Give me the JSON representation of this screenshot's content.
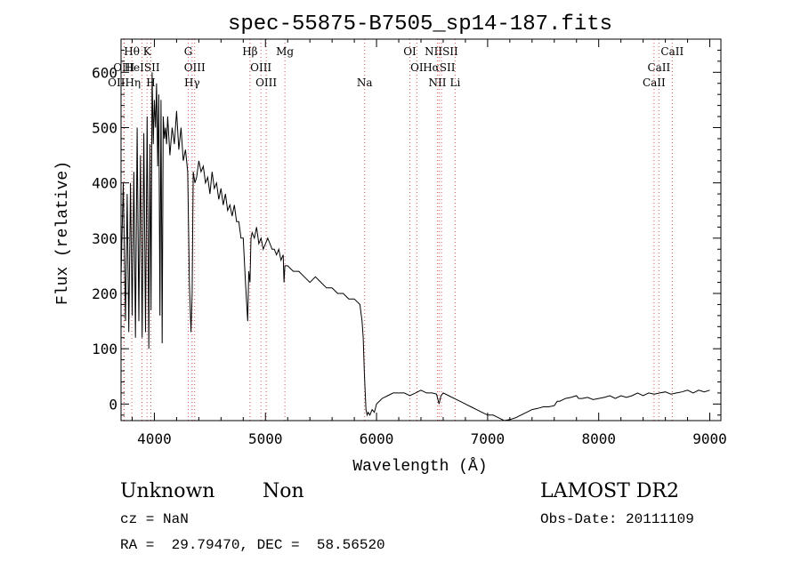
{
  "chart_data": {
    "type": "line",
    "title": "spec-55875-B7505_sp14-187.fits",
    "xlabel": "Wavelength (Å)",
    "ylabel": "Flux (relative)",
    "xlim": [
      3700,
      9100
    ],
    "ylim": [
      -30,
      660
    ],
    "xticks": [
      4000,
      5000,
      6000,
      7000,
      8000,
      9000
    ],
    "yticks": [
      0,
      100,
      200,
      300,
      400,
      500,
      600
    ],
    "grid": false,
    "line_color": "#000000",
    "marker_color": "#e05050",
    "series": [
      {
        "x": [
          3700,
          3720,
          3740,
          3755,
          3770,
          3785,
          3800,
          3815,
          3830,
          3845,
          3860,
          3875,
          3890,
          3905,
          3920,
          3935,
          3950,
          3960,
          3970,
          3980,
          3990,
          4000,
          4010,
          4020,
          4030,
          4040,
          4050,
          4060,
          4070,
          4080,
          4090,
          4100,
          4110,
          4120,
          4140,
          4160,
          4180,
          4200,
          4220,
          4240,
          4260,
          4280,
          4300,
          4315,
          4330,
          4340,
          4350,
          4365,
          4380,
          4400,
          4420,
          4440,
          4460,
          4480,
          4500,
          4520,
          4540,
          4560,
          4580,
          4600,
          4620,
          4640,
          4660,
          4680,
          4700,
          4720,
          4740,
          4760,
          4780,
          4800,
          4820,
          4840,
          4850,
          4861,
          4870,
          4880,
          4900,
          4920,
          4940,
          4960,
          4980,
          5000,
          5020,
          5040,
          5060,
          5080,
          5100,
          5120,
          5140,
          5160,
          5167,
          5175,
          5200,
          5250,
          5300,
          5350,
          5400,
          5450,
          5500,
          5550,
          5600,
          5650,
          5700,
          5750,
          5800,
          5850,
          5870,
          5880,
          5890,
          5896,
          5905,
          5915,
          5925,
          5940,
          5960,
          5980,
          6000,
          6050,
          6100,
          6150,
          6200,
          6250,
          6300,
          6350,
          6400,
          6450,
          6500,
          6540,
          6563,
          6580,
          6600,
          6650,
          6700,
          6750,
          6800,
          6850,
          6900,
          6950,
          7000,
          7050,
          7100,
          7150,
          7200,
          7250,
          7300,
          7350,
          7400,
          7450,
          7500,
          7550,
          7600,
          7627,
          7650,
          7700,
          7750,
          7800,
          7820,
          7850,
          7900,
          7950,
          8000,
          8050,
          8100,
          8150,
          8200,
          8250,
          8300,
          8350,
          8400,
          8450,
          8500,
          8550,
          8600,
          8650,
          8700,
          8750,
          8800,
          8850,
          8900,
          8950,
          9000
        ],
        "y": [
          230,
          400,
          150,
          380,
          130,
          400,
          160,
          420,
          120,
          500,
          150,
          450,
          120,
          490,
          130,
          520,
          100,
          470,
          170,
          600,
          470,
          550,
          500,
          580,
          430,
          560,
          160,
          550,
          110,
          520,
          480,
          500,
          470,
          520,
          450,
          500,
          470,
          530,
          460,
          500,
          440,
          460,
          420,
          220,
          130,
          200,
          420,
          400,
          410,
          440,
          420,
          430,
          400,
          410,
          380,
          420,
          390,
          400,
          370,
          390,
          360,
          380,
          350,
          360,
          340,
          360,
          330,
          330,
          300,
          300,
          220,
          150,
          240,
          220,
          300,
          310,
          300,
          320,
          290,
          300,
          280,
          290,
          300,
          290,
          280,
          280,
          270,
          280,
          260,
          270,
          220,
          250,
          250,
          240,
          240,
          230,
          220,
          230,
          220,
          210,
          210,
          200,
          200,
          190,
          190,
          180,
          150,
          120,
          60,
          30,
          -10,
          -20,
          -15,
          -20,
          -10,
          -15,
          0,
          10,
          15,
          20,
          20,
          20,
          15,
          20,
          25,
          20,
          20,
          18,
          0,
          15,
          20,
          15,
          10,
          5,
          0,
          -5,
          -10,
          -15,
          -20,
          -20,
          -25,
          -30,
          -28,
          -25,
          -20,
          -15,
          -10,
          -8,
          -5,
          -5,
          -3,
          5,
          5,
          10,
          12,
          15,
          10,
          10,
          12,
          8,
          10,
          12,
          15,
          10,
          15,
          12,
          15,
          20,
          15,
          20,
          18,
          20,
          22,
          18,
          20,
          22,
          25,
          20,
          25,
          22,
          25
        ]
      }
    ],
    "line_markers": [
      {
        "label": "Hθ",
        "x": 3797,
        "row": 0
      },
      {
        "label": "K",
        "x": 3934,
        "row": 0
      },
      {
        "label": "G",
        "x": 4305,
        "row": 0
      },
      {
        "label": "Hβ",
        "x": 4861,
        "row": 0
      },
      {
        "label": "Mg",
        "x": 5175,
        "row": 0
      },
      {
        "label": "OI",
        "x": 6300,
        "row": 0
      },
      {
        "label": "NIISII",
        "x": 6584,
        "row": 0
      },
      {
        "label": "CaII",
        "x": 8662,
        "row": 0
      },
      {
        "label": "OIII",
        "x": 3726,
        "row": 1
      },
      {
        "label": "HeISII",
        "x": 3889,
        "row": 1
      },
      {
        "label": "OIII",
        "x": 4363,
        "row": 1
      },
      {
        "label": "OIII",
        "x": 4959,
        "row": 1
      },
      {
        "label": "OI",
        "x": 6363,
        "row": 1
      },
      {
        "label": "HαSII",
        "x": 6563,
        "row": 1
      },
      {
        "label": "CaII",
        "x": 8542,
        "row": 1
      },
      {
        "label": "OIIHη",
        "x": 3729,
        "row": 2
      },
      {
        "label": "H",
        "x": 3968,
        "row": 2
      },
      {
        "label": "Hγ",
        "x": 4340,
        "row": 2
      },
      {
        "label": "OIII",
        "x": 5007,
        "row": 2
      },
      {
        "label": "Na",
        "x": 5893,
        "row": 2
      },
      {
        "label": "NII",
        "x": 6548,
        "row": 2
      },
      {
        "label": "Li",
        "x": 6708,
        "row": 2
      },
      {
        "label": "CaII",
        "x": 8498,
        "row": 2
      }
    ]
  },
  "info": {
    "class_text": "Unknown",
    "subclass_text": "Non",
    "survey_text": "LAMOST DR2",
    "cz_text": "cz = NaN",
    "obsdate_text": "Obs-Date: 20111109",
    "radec_text": "RA =  29.79470, DEC =  58.56520"
  }
}
